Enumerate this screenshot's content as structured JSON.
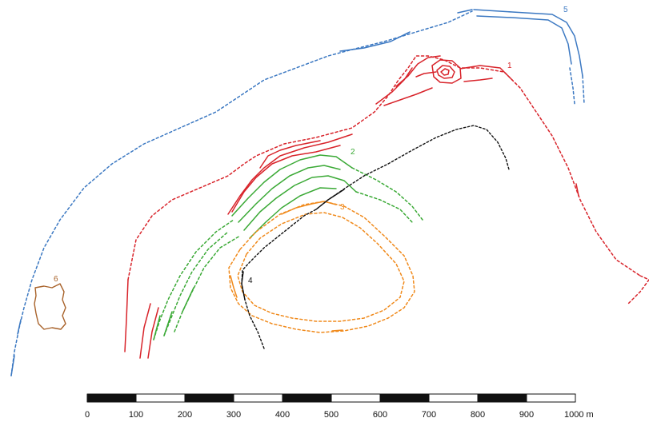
{
  "features": [
    {
      "id": "1",
      "label": "1",
      "color": "#d8232a"
    },
    {
      "id": "2",
      "label": "2",
      "color": "#3aa935"
    },
    {
      "id": "3",
      "label": "3",
      "color": "#f08a1c"
    },
    {
      "id": "4",
      "label": "4",
      "color": "#111111"
    },
    {
      "id": "5",
      "label": "5",
      "color": "#3b78c2"
    },
    {
      "id": "6",
      "label": "6",
      "color": "#a8622a"
    }
  ],
  "scale_bar": {
    "labels": [
      "0",
      "100",
      "200",
      "300",
      "400",
      "500",
      "600",
      "700",
      "800",
      "900",
      "1000 m"
    ]
  }
}
